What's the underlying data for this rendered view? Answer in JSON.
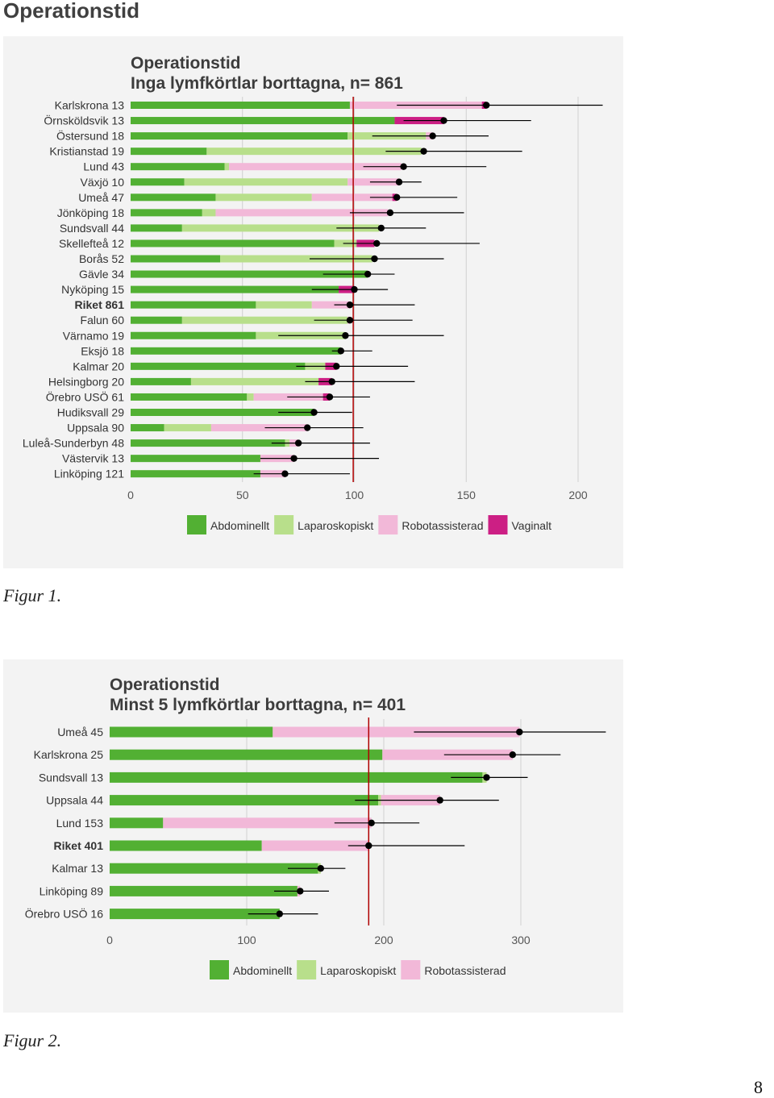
{
  "page": {
    "heading": "Operationstid",
    "page_number": "8",
    "captions": [
      "Figur 1.",
      "Figur 2."
    ]
  },
  "colors": {
    "Abdominellt": "#52b033",
    "Laparoskopiskt": "#b8df8b",
    "Robotassisterad": "#f2b8d8",
    "Vaginalt": "#cc1f84",
    "reference_line": "#b00000",
    "error_bar": "#000000",
    "panel_bg": "#f3f3f3",
    "grid": "#d0d0d0"
  },
  "chart_data": [
    {
      "type": "bar",
      "orientation": "horizontal",
      "stacked": true,
      "title": "Operationstid",
      "subtitle": "Inga lymfkörtlar borttagna, n= 861",
      "xlim": [
        0,
        200
      ],
      "xticks": [
        "0",
        "50",
        "100",
        "150",
        "200"
      ],
      "reference_value": 99.5,
      "legend_position": "bottom",
      "legend": [
        "Abdominellt",
        "Laparoskopiskt",
        "Robotassisterad",
        "Vaginalt"
      ],
      "rows": [
        {
          "label": "Karlskrona 13",
          "bold": false,
          "segments": [
            98,
            0,
            59,
            2
          ],
          "mean": 159,
          "ci": [
            119,
            211
          ]
        },
        {
          "label": "Örnsköldsvik 13",
          "bold": false,
          "segments": [
            118,
            0,
            0,
            22
          ],
          "mean": 140,
          "ci": [
            122,
            179
          ]
        },
        {
          "label": "Östersund 18",
          "bold": false,
          "segments": [
            97,
            35,
            3,
            0
          ],
          "mean": 135,
          "ci": [
            108,
            160
          ]
        },
        {
          "label": "Kristianstad 19",
          "bold": false,
          "segments": [
            34,
            96,
            0,
            0
          ],
          "mean": 131,
          "ci": [
            114,
            175
          ]
        },
        {
          "label": "Lund 43",
          "bold": false,
          "segments": [
            42,
            2,
            77,
            0
          ],
          "mean": 122,
          "ci": [
            104,
            159
          ]
        },
        {
          "label": "Växjö 10",
          "bold": false,
          "segments": [
            24,
            73,
            23,
            0
          ],
          "mean": 120,
          "ci": [
            107,
            130
          ]
        },
        {
          "label": "Umeå 47",
          "bold": false,
          "segments": [
            38,
            43,
            36,
            2
          ],
          "mean": 119,
          "ci": [
            107,
            146
          ]
        },
        {
          "label": "Jönköping 18",
          "bold": false,
          "segments": [
            32,
            6,
            77,
            0
          ],
          "mean": 116,
          "ci": [
            98,
            149
          ]
        },
        {
          "label": "Sundsvall 44",
          "bold": false,
          "segments": [
            23,
            88,
            0,
            0
          ],
          "mean": 112,
          "ci": [
            92,
            132
          ]
        },
        {
          "label": "Skellefteå 12",
          "bold": false,
          "segments": [
            91,
            10,
            0,
            8
          ],
          "mean": 110,
          "ci": [
            95,
            156
          ]
        },
        {
          "label": "Borås 52",
          "bold": false,
          "segments": [
            40,
            68,
            0,
            0
          ],
          "mean": 109,
          "ci": [
            80,
            140
          ]
        },
        {
          "label": "Gävle 34",
          "bold": false,
          "segments": [
            106,
            0,
            0,
            0
          ],
          "mean": 106,
          "ci": [
            86,
            118
          ]
        },
        {
          "label": "Nyköping 15",
          "bold": false,
          "segments": [
            93,
            0,
            0,
            7
          ],
          "mean": 100,
          "ci": [
            81,
            115
          ]
        },
        {
          "label": "Riket 861",
          "bold": true,
          "segments": [
            56,
            25,
            17,
            0
          ],
          "mean": 98,
          "ci": [
            91,
            127
          ]
        },
        {
          "label": "Falun 60",
          "bold": false,
          "segments": [
            23,
            74,
            1,
            0
          ],
          "mean": 98,
          "ci": [
            82,
            126
          ]
        },
        {
          "label": "Värnamo 19",
          "bold": false,
          "segments": [
            56,
            40,
            0,
            0
          ],
          "mean": 96,
          "ci": [
            66,
            140
          ]
        },
        {
          "label": "Eksjö 18",
          "bold": false,
          "segments": [
            94,
            0,
            0,
            0
          ],
          "mean": 94,
          "ci": [
            90,
            108
          ]
        },
        {
          "label": "Kalmar 20",
          "bold": false,
          "segments": [
            78,
            9,
            0,
            5
          ],
          "mean": 92,
          "ci": [
            74,
            124
          ]
        },
        {
          "label": "Helsingborg 20",
          "bold": false,
          "segments": [
            27,
            57,
            0,
            6
          ],
          "mean": 90,
          "ci": [
            78,
            127
          ]
        },
        {
          "label": "Örebro USÖ 61",
          "bold": false,
          "segments": [
            52,
            3,
            31,
            3
          ],
          "mean": 89,
          "ci": [
            70,
            107
          ]
        },
        {
          "label": "Hudiksvall 29",
          "bold": false,
          "segments": [
            82,
            0,
            0,
            0
          ],
          "mean": 82,
          "ci": [
            66,
            99
          ]
        },
        {
          "label": "Uppsala 90",
          "bold": false,
          "segments": [
            15,
            21,
            43,
            0
          ],
          "mean": 79,
          "ci": [
            60,
            104
          ]
        },
        {
          "label": "Luleå-Sunderbyn 48",
          "bold": false,
          "segments": [
            69,
            2,
            4,
            0
          ],
          "mean": 75,
          "ci": [
            63,
            107
          ]
        },
        {
          "label": "Västervik 13",
          "bold": false,
          "segments": [
            58,
            0,
            15,
            0
          ],
          "mean": 73,
          "ci": [
            58,
            111
          ]
        },
        {
          "label": "Linköping 121",
          "bold": false,
          "segments": [
            58,
            0,
            11,
            0
          ],
          "mean": 69,
          "ci": [
            55,
            98
          ]
        }
      ]
    },
    {
      "type": "bar",
      "orientation": "horizontal",
      "stacked": true,
      "title": "Operationstid",
      "subtitle": "Minst 5 lymfkörtlar borttagna, n= 401",
      "xlim": [
        0,
        300
      ],
      "xticks": [
        "0",
        "100",
        "200",
        "300"
      ],
      "reference_value": 189,
      "legend_position": "bottom",
      "legend": [
        "Abdominellt",
        "Laparoskopiskt",
        "Robotassisterad"
      ],
      "rows": [
        {
          "label": "Umeå 45",
          "bold": false,
          "segments": [
            119,
            0,
            180,
            0
          ],
          "mean": 299,
          "ci": [
            222,
            362
          ]
        },
        {
          "label": "Karlskrona 25",
          "bold": false,
          "segments": [
            199,
            0,
            95,
            0
          ],
          "mean": 294,
          "ci": [
            244,
            329
          ]
        },
        {
          "label": "Sundsvall 13",
          "bold": false,
          "segments": [
            272,
            3,
            0,
            0
          ],
          "mean": 275,
          "ci": [
            249,
            305
          ]
        },
        {
          "label": "Uppsala 44",
          "bold": false,
          "segments": [
            196,
            2,
            43,
            0
          ],
          "mean": 241,
          "ci": [
            179,
            284
          ]
        },
        {
          "label": "Lund 153",
          "bold": false,
          "segments": [
            39,
            0,
            152,
            0
          ],
          "mean": 191,
          "ci": [
            164,
            226
          ]
        },
        {
          "label": "Riket 401",
          "bold": true,
          "segments": [
            111,
            0,
            78,
            0
          ],
          "mean": 189,
          "ci": [
            174,
            259
          ]
        },
        {
          "label": "Kalmar 13",
          "bold": false,
          "segments": [
            152,
            2,
            0,
            0
          ],
          "mean": 154,
          "ci": [
            130,
            172
          ]
        },
        {
          "label": "Linköping 89",
          "bold": false,
          "segments": [
            137,
            0,
            2,
            0
          ],
          "mean": 139,
          "ci": [
            120,
            160
          ]
        },
        {
          "label": "Örebro USÖ 16",
          "bold": false,
          "segments": [
            124,
            0,
            0,
            0
          ],
          "mean": 124,
          "ci": [
            101,
            152
          ]
        }
      ]
    }
  ]
}
